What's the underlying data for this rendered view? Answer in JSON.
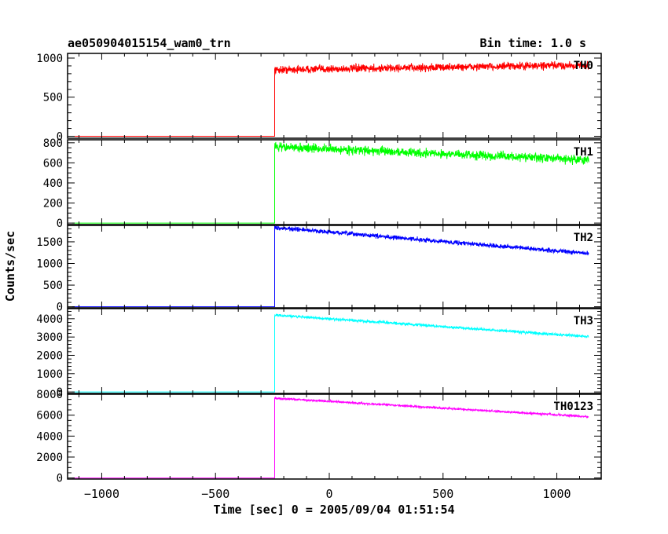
{
  "title_left": "ae050904015154_wam0_trn",
  "title_right": "Bin time: 1.0 s",
  "ylabel": "Counts/sec",
  "xlabel": "Time [sec] 0 = 2005/09/04 01:51:54",
  "chart_data": {
    "type": "line",
    "xlim": [
      -1150,
      1195
    ],
    "x_ticks": [
      -1000,
      -500,
      0,
      500,
      1000
    ],
    "x_tick_labels": [
      "−1000",
      "−500",
      "0",
      "500",
      "1000"
    ],
    "x_start": -1130,
    "x_step": -240,
    "x_end": 1140,
    "panels": [
      {
        "name": "TH0",
        "color": "#ff0000",
        "ylim": [
          -25,
          1060
        ],
        "y_ticks": [
          0,
          500,
          1000
        ],
        "y_minor": 100,
        "pre_level": 0,
        "start_level": 850,
        "end_level": 910,
        "noise": 40
      },
      {
        "name": "TH1",
        "color": "#00ff00",
        "ylim": [
          -15,
          830
        ],
        "y_ticks": [
          0,
          200,
          400,
          600,
          800
        ],
        "y_minor": 50,
        "pre_level": 0,
        "start_level": 760,
        "end_level": 630,
        "noise": 35
      },
      {
        "name": "TH2",
        "color": "#0000ff",
        "ylim": [
          -25,
          1880
        ],
        "y_ticks": [
          0,
          500,
          1000,
          1500
        ],
        "y_minor": 100,
        "pre_level": 0,
        "start_level": 1830,
        "end_level": 1230,
        "noise": 40
      },
      {
        "name": "TH3",
        "color": "#00ffff",
        "ylim": [
          -80,
          4550
        ],
        "y_ticks": [
          0,
          1000,
          2000,
          3000,
          4000
        ],
        "y_minor": 200,
        "pre_level": 0,
        "start_level": 4200,
        "end_level": 3020,
        "noise": 60
      },
      {
        "name": "TH0123",
        "color": "#ff00ff",
        "ylim": [
          -100,
          8000
        ],
        "y_ticks": [
          0,
          2000,
          4000,
          6000,
          8000
        ],
        "y_minor": 500,
        "pre_level": 0,
        "start_level": 7620,
        "end_level": 5850,
        "noise": 80
      }
    ]
  }
}
